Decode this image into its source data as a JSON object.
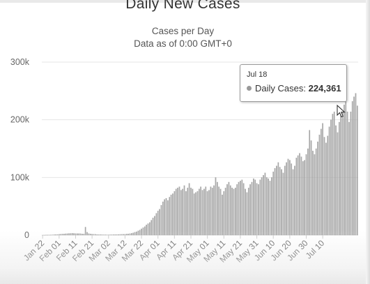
{
  "title": "Daily New Cases",
  "subtitle_line1": "Cases per Day",
  "subtitle_line2": "Data as of 0:00 GMT+0",
  "tooltip": {
    "date": "Jul 18",
    "label": "Daily Cases:",
    "value": "224,361"
  },
  "icons": [
    "pointer-cursor-icon",
    "tooltip-dot-icon"
  ],
  "colors": {
    "bar": "#a8a8a8",
    "bar_edge": "#8e8e8e",
    "grid": "#e6e6e6",
    "axis_text": "#666666"
  },
  "chart_data": {
    "type": "bar",
    "title": "Daily New Cases",
    "subtitle": "Cases per Day",
    "xlabel": "",
    "ylabel": "",
    "ylim": [
      0,
      300000
    ],
    "y_ticks": [
      0,
      100000,
      200000,
      300000
    ],
    "y_tick_labels": [
      "0",
      "100k",
      "200k",
      "300k"
    ],
    "x_tick_labels": [
      "Jan 22",
      "Feb 01",
      "Feb 11",
      "Feb 21",
      "Mar 02",
      "Mar 12",
      "Mar 22",
      "Apr 01",
      "Apr 11",
      "Apr 21",
      "May 01",
      "May 11",
      "May 21",
      "May 31",
      "Jun 10",
      "Jun 20",
      "Jun 30",
      "Jul 10"
    ],
    "grid": true,
    "legend": "none",
    "series": [
      {
        "name": "Daily Cases",
        "x_start": "Jan 22",
        "x_end": "Jul 18",
        "values": [
          0,
          100,
          200,
          300,
          400,
          500,
          600,
          800,
          1000,
          1200,
          1500,
          1700,
          2000,
          2100,
          2500,
          2700,
          3000,
          3100,
          3300,
          3100,
          2900,
          2800,
          2700,
          2600,
          2200,
          2000,
          14000,
          5000,
          2800,
          2200,
          1800,
          1600,
          1400,
          1100,
          1000,
          900,
          800,
          700,
          700,
          600,
          600,
          700,
          800,
          900,
          1000,
          1100,
          1200,
          1300,
          1400,
          1500,
          1700,
          2000,
          2300,
          2700,
          3200,
          4000,
          5000,
          6000,
          7500,
          9000,
          11000,
          13000,
          15000,
          18000,
          20000,
          22000,
          26000,
          30000,
          33000,
          38000,
          42000,
          45000,
          52000,
          58000,
          62000,
          64000,
          60000,
          66000,
          70000,
          72000,
          76000,
          80000,
          82000,
          84000,
          78000,
          80000,
          86000,
          76000,
          82000,
          90000,
          82000,
          80000,
          72000,
          74000,
          76000,
          80000,
          84000,
          78000,
          80000,
          84000,
          76000,
          78000,
          84000,
          82000,
          86000,
          100000,
          92000,
          84000,
          80000,
          70000,
          76000,
          82000,
          88000,
          92000,
          86000,
          82000,
          80000,
          82000,
          88000,
          92000,
          94000,
          96000,
          90000,
          80000,
          74000,
          82000,
          88000,
          92000,
          98000,
          96000,
          90000,
          88000,
          96000,
          100000,
          104000,
          108000,
          100000,
          98000,
          94000,
          100000,
          110000,
          116000,
          120000,
          126000,
          118000,
          114000,
          108000,
          120000,
          126000,
          132000,
          130000,
          124000,
          114000,
          120000,
          134000,
          138000,
          142000,
          136000,
          128000,
          130000,
          140000,
          150000,
          182000,
          164000,
          146000,
          140000,
          150000,
          162000,
          174000,
          184000,
          194000,
          170000,
          160000,
          172000,
          188000,
          200000,
          210000,
          214000,
          190000,
          178000,
          196000,
          210000,
          216000,
          226000,
          232000,
          214000,
          196000,
          214000,
          232000,
          240000,
          246000,
          224361
        ]
      }
    ]
  }
}
